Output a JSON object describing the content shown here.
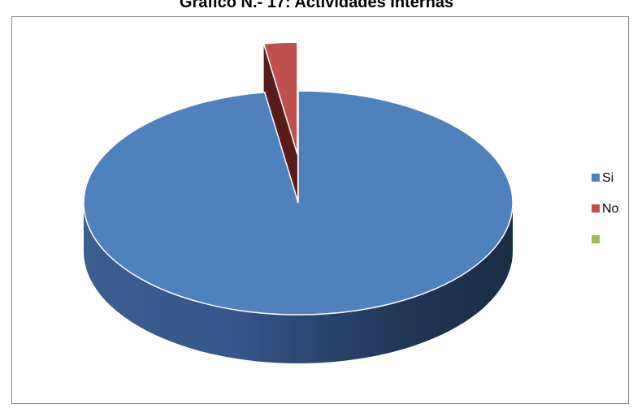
{
  "chart_data": {
    "type": "pie",
    "title": "Grafico N.- 17: Actividades Internas",
    "categories": [
      "Si",
      "No",
      ""
    ],
    "values": [
      97.5,
      2.5,
      0
    ],
    "colors": [
      "#4F81BD",
      "#C0504D",
      "#9BBB59"
    ],
    "exploded": [
      false,
      true,
      false
    ],
    "three_d": true,
    "legend_position": "right"
  }
}
